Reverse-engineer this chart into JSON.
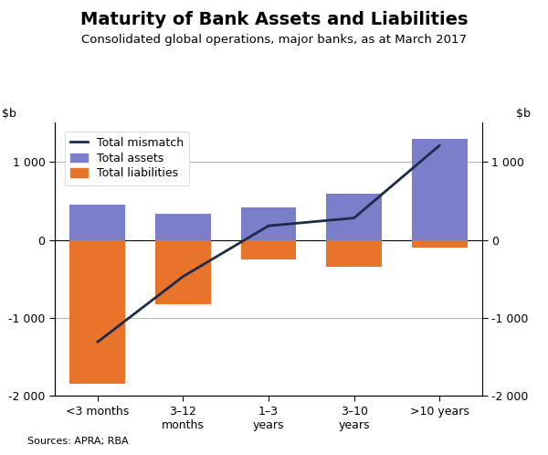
{
  "title": "Maturity of Bank Assets and Liabilities",
  "subtitle": "Consolidated global operations, major banks, as at March 2017",
  "source": "Sources: APRA; RBA",
  "categories": [
    "<3 months",
    "3–12\nmonths",
    "1–3\nyears",
    "3–10\nyears",
    ">10 years"
  ],
  "assets": [
    450,
    330,
    420,
    590,
    1300
  ],
  "liabilities": [
    -1850,
    -830,
    -250,
    -340,
    -105
  ],
  "mismatch": [
    -1310,
    -470,
    180,
    280,
    1210
  ],
  "asset_color": "#7B7EC8",
  "liability_color": "#E8732A",
  "mismatch_color": "#1C2B4A",
  "ylim": [
    -2000,
    1500
  ],
  "yticks": [
    -2000,
    -1000,
    0,
    1000
  ],
  "ytick_labels": [
    "-2 000",
    "-1 000",
    "0",
    "1 000"
  ],
  "bar_width": 0.65,
  "background_color": "#ffffff",
  "grid_color": "#b0b0b0",
  "title_fontsize": 14,
  "subtitle_fontsize": 9.5,
  "label_fontsize": 9,
  "tick_fontsize": 9,
  "legend_fontsize": 9,
  "source_fontsize": 8
}
